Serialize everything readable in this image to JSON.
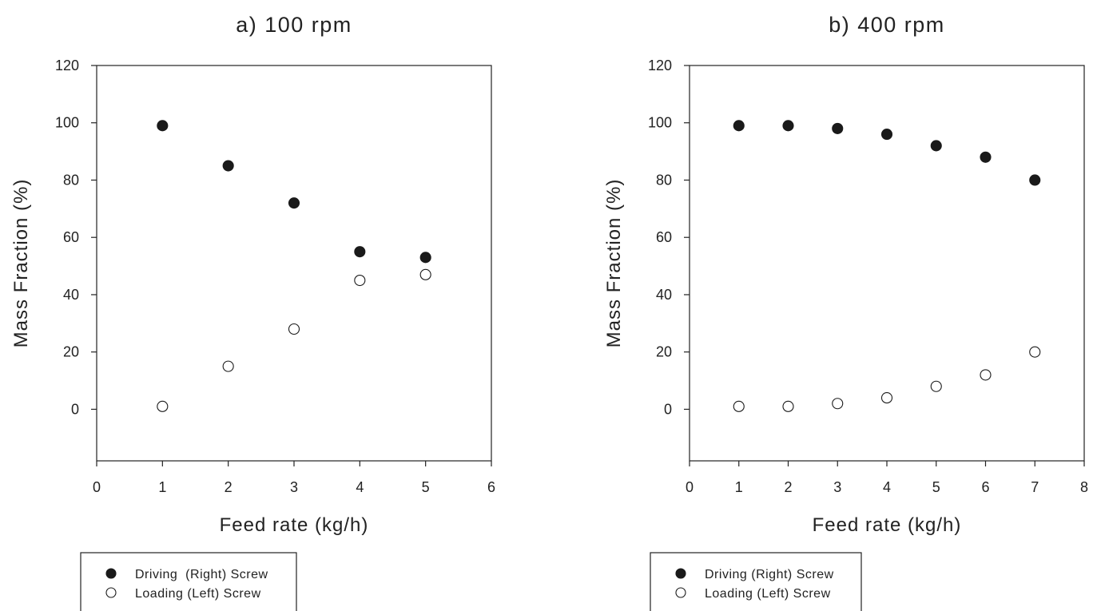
{
  "chart_data": [
    {
      "type": "scatter",
      "title": "a) 100 rpm",
      "xlabel": "Feed rate (kg/h)",
      "ylabel": "Mass Fraction (%)",
      "xlim": [
        0,
        6
      ],
      "ylim": [
        -18,
        120
      ],
      "xticks": [
        0,
        1,
        2,
        3,
        4,
        5,
        6
      ],
      "yticks": [
        0,
        20,
        40,
        60,
        80,
        100,
        120
      ],
      "grid": false,
      "legend_position": "below",
      "series": [
        {
          "name": "Driving  (Right) Screw",
          "marker": "filled-circle",
          "color": "#1a1a1a",
          "points": [
            {
              "x": 1,
              "y": 99
            },
            {
              "x": 2,
              "y": 85
            },
            {
              "x": 3,
              "y": 72
            },
            {
              "x": 4,
              "y": 55
            },
            {
              "x": 5,
              "y": 53
            }
          ]
        },
        {
          "name": "Loading (Left) Screw",
          "marker": "open-circle",
          "color": "#1a1a1a",
          "points": [
            {
              "x": 1,
              "y": 1
            },
            {
              "x": 2,
              "y": 15
            },
            {
              "x": 3,
              "y": 28
            },
            {
              "x": 4,
              "y": 45
            },
            {
              "x": 5,
              "y": 47
            }
          ]
        }
      ]
    },
    {
      "type": "scatter",
      "title": "b) 400 rpm",
      "xlabel": "Feed rate (kg/h)",
      "ylabel": "Mass Fraction (%)",
      "xlim": [
        0,
        8
      ],
      "ylim": [
        -18,
        120
      ],
      "xticks": [
        0,
        1,
        2,
        3,
        4,
        5,
        6,
        7,
        8
      ],
      "yticks": [
        0,
        20,
        40,
        60,
        80,
        100,
        120
      ],
      "grid": false,
      "legend_position": "below",
      "series": [
        {
          "name": "Driving (Right) Screw",
          "marker": "filled-circle",
          "color": "#1a1a1a",
          "points": [
            {
              "x": 1,
              "y": 99
            },
            {
              "x": 2,
              "y": 99
            },
            {
              "x": 3,
              "y": 98
            },
            {
              "x": 4,
              "y": 96
            },
            {
              "x": 5,
              "y": 92
            },
            {
              "x": 6,
              "y": 88
            },
            {
              "x": 7,
              "y": 80
            }
          ]
        },
        {
          "name": "Loading (Left) Screw",
          "marker": "open-circle",
          "color": "#1a1a1a",
          "points": [
            {
              "x": 1,
              "y": 1
            },
            {
              "x": 2,
              "y": 1
            },
            {
              "x": 3,
              "y": 2
            },
            {
              "x": 4,
              "y": 4
            },
            {
              "x": 5,
              "y": 8
            },
            {
              "x": 6,
              "y": 12
            },
            {
              "x": 7,
              "y": 20
            }
          ]
        }
      ]
    }
  ]
}
